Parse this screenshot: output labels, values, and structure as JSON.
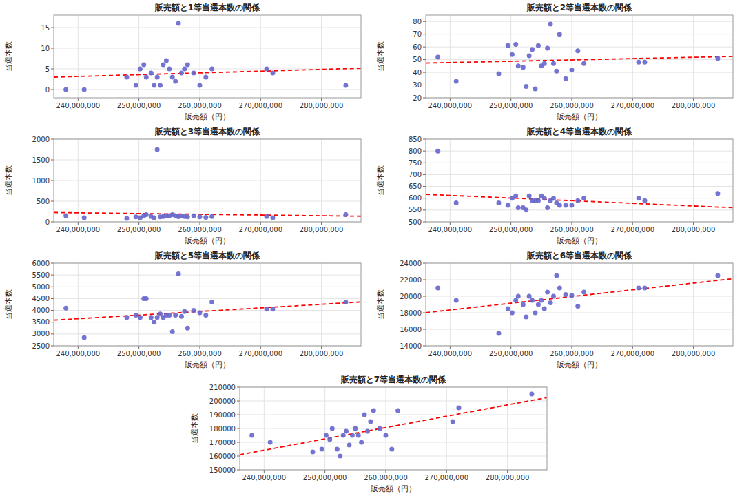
{
  "chart_data": [
    {
      "type": "scatter",
      "title": "販売額と1等当選本数の関係",
      "x_label": "販売額（円）",
      "y_label": "当選本数",
      "grid": true,
      "xlim": [
        236000000,
        286500000
      ],
      "xticks": [
        {
          "value": 240000000,
          "label": "240,000,000"
        },
        {
          "value": 250000000,
          "label": "250,000,000"
        },
        {
          "value": 260000000,
          "label": "260,000,000"
        },
        {
          "value": 270000000,
          "label": "270,000,000"
        },
        {
          "value": 280000000,
          "label": "280,000,000"
        }
      ],
      "ylim": [
        -2,
        18
      ],
      "yticks": [
        0,
        5,
        10,
        15
      ],
      "series": [
        {
          "type": "scatter",
          "color": "#6666cc",
          "x": [
            238000000,
            241000000,
            248000000,
            249500000,
            250200000,
            250800000,
            251200000,
            252000000,
            252500000,
            253000000,
            253500000,
            254000000,
            254500000,
            255000000,
            255500000,
            256000000,
            256500000,
            257000000,
            257500000,
            258000000,
            259000000,
            260000000,
            261000000,
            262000000,
            271000000,
            272000000,
            284000000
          ],
          "values": [
            0,
            0,
            3,
            1,
            5,
            6,
            3,
            4,
            1,
            3,
            1,
            6,
            7,
            5,
            3,
            2,
            16,
            4,
            5,
            6,
            4,
            1,
            3,
            5,
            5,
            4,
            1
          ]
        },
        {
          "type": "line",
          "color": "red",
          "line_style": "dashed",
          "x": [
            236000000,
            286500000
          ],
          "values": [
            2.997,
            5.153
          ]
        }
      ]
    },
    {
      "type": "scatter",
      "title": "販売額と2等当選本数の関係",
      "x_label": "販売額（円）",
      "y_label": "当選本数",
      "grid": true,
      "xlim": [
        236000000,
        286500000
      ],
      "xticks": [
        {
          "value": 240000000,
          "label": "240,000,000"
        },
        {
          "value": 250000000,
          "label": "250,000,000"
        },
        {
          "value": 260000000,
          "label": "260,000,000"
        },
        {
          "value": 270000000,
          "label": "270,000,000"
        },
        {
          "value": 280000000,
          "label": "280,000,000"
        }
      ],
      "ylim": [
        20,
        85
      ],
      "yticks": [
        20,
        30,
        40,
        50,
        60,
        70,
        80
      ],
      "series": [
        {
          "type": "scatter",
          "color": "#6666cc",
          "x": [
            238000000,
            241000000,
            248000000,
            249500000,
            250200000,
            250800000,
            251200000,
            252000000,
            252500000,
            253000000,
            253500000,
            254000000,
            254500000,
            255000000,
            255500000,
            256000000,
            256500000,
            257000000,
            257500000,
            258000000,
            259000000,
            260000000,
            261000000,
            262000000,
            271000000,
            272000000,
            284000000
          ],
          "values": [
            52,
            33,
            39,
            61,
            54,
            62,
            45,
            44,
            29,
            53,
            58,
            27,
            61,
            45,
            47,
            59,
            78,
            47,
            41,
            70,
            35,
            42,
            57,
            47,
            48,
            48,
            51
          ]
        },
        {
          "type": "line",
          "color": "red",
          "line_style": "dashed",
          "x": [
            236000000,
            286500000
          ],
          "values": [
            47.298,
            52.524
          ]
        }
      ]
    },
    {
      "type": "scatter",
      "title": "販売額と3等当選本数の関係",
      "x_label": "販売額（円）",
      "y_label": "当選本数",
      "grid": true,
      "xlim": [
        236000000,
        286500000
      ],
      "xticks": [
        {
          "value": 240000000,
          "label": "240,000,000"
        },
        {
          "value": 250000000,
          "label": "250,000,000"
        },
        {
          "value": 260000000,
          "label": "260,000,000"
        },
        {
          "value": 270000000,
          "label": "270,000,000"
        },
        {
          "value": 280000000,
          "label": "280,000,000"
        }
      ],
      "ylim": [
        0,
        2000
      ],
      "yticks": [
        0,
        500,
        1000,
        1500,
        2000
      ],
      "series": [
        {
          "type": "scatter",
          "color": "#6666cc",
          "x": [
            238000000,
            241000000,
            248000000,
            249500000,
            250200000,
            250800000,
            251200000,
            252000000,
            252500000,
            253000000,
            253500000,
            254000000,
            254500000,
            255000000,
            255500000,
            256000000,
            256500000,
            257000000,
            257500000,
            258000000,
            259000000,
            260000000,
            261000000,
            262000000,
            271000000,
            272000000,
            284000000
          ],
          "values": [
            150,
            100,
            85,
            120,
            100,
            150,
            175,
            130,
            100,
            1750,
            120,
            130,
            140,
            150,
            175,
            150,
            125,
            140,
            130,
            120,
            150,
            120,
            110,
            130,
            130,
            100,
            175
          ]
        },
        {
          "type": "line",
          "color": "red",
          "line_style": "dashed",
          "x": [
            236000000,
            286500000
          ],
          "values": [
            226.1,
            137.4
          ]
        }
      ]
    },
    {
      "type": "scatter",
      "title": "販売額と4等当選本数の関係",
      "x_label": "販売額（円）",
      "y_label": "当選本数",
      "grid": true,
      "xlim": [
        236000000,
        286500000
      ],
      "xticks": [
        {
          "value": 240000000,
          "label": "240,000,000"
        },
        {
          "value": 250000000,
          "label": "250,000,000"
        },
        {
          "value": 260000000,
          "label": "260,000,000"
        },
        {
          "value": 270000000,
          "label": "270,000,000"
        },
        {
          "value": 280000000,
          "label": "280,000,000"
        }
      ],
      "ylim": [
        500,
        850
      ],
      "yticks": [
        500,
        550,
        600,
        650,
        700,
        750,
        800,
        850
      ],
      "series": [
        {
          "type": "scatter",
          "color": "#6666cc",
          "x": [
            238000000,
            241000000,
            248000000,
            249500000,
            250200000,
            250800000,
            251200000,
            252000000,
            252500000,
            253000000,
            253500000,
            254000000,
            254500000,
            255000000,
            255500000,
            256000000,
            256500000,
            257000000,
            257500000,
            258000000,
            259000000,
            260000000,
            261000000,
            262000000,
            271000000,
            272000000,
            284000000
          ],
          "values": [
            800,
            580,
            580,
            570,
            600,
            610,
            560,
            560,
            550,
            610,
            590,
            590,
            590,
            610,
            600,
            560,
            590,
            600,
            580,
            570,
            570,
            570,
            590,
            600,
            600,
            590,
            620
          ]
        },
        {
          "type": "line",
          "color": "red",
          "line_style": "dashed",
          "x": [
            236000000,
            286500000
          ],
          "values": [
            616.453,
            560.02
          ]
        }
      ]
    },
    {
      "type": "scatter",
      "title": "販売額と5等当選本数の関係",
      "x_label": "販売額（円）",
      "y_label": "当選本数",
      "grid": true,
      "xlim": [
        236000000,
        286500000
      ],
      "xticks": [
        {
          "value": 240000000,
          "label": "240,000,000"
        },
        {
          "value": 250000000,
          "label": "250,000,000"
        },
        {
          "value": 260000000,
          "label": "260,000,000"
        },
        {
          "value": 270000000,
          "label": "270,000,000"
        },
        {
          "value": 280000000,
          "label": "280,000,000"
        }
      ],
      "ylim": [
        2500,
        6000
      ],
      "yticks": [
        2500,
        3000,
        3500,
        4000,
        4500,
        5000,
        5500,
        6000
      ],
      "series": [
        {
          "type": "scatter",
          "color": "#6666cc",
          "x": [
            238000000,
            241000000,
            248000000,
            249500000,
            250200000,
            250800000,
            251200000,
            252000000,
            252500000,
            253000000,
            253500000,
            254000000,
            254500000,
            255000000,
            255500000,
            256000000,
            256500000,
            257000000,
            257500000,
            258000000,
            259000000,
            260000000,
            261000000,
            262000000,
            271000000,
            272000000,
            284000000
          ],
          "values": [
            4100,
            2850,
            3700,
            3800,
            3700,
            4500,
            4500,
            3700,
            3500,
            3700,
            3850,
            3700,
            3800,
            3800,
            3100,
            3800,
            5550,
            3750,
            3950,
            3250,
            4000,
            3900,
            3800,
            4350,
            4050,
            4050,
            4350
          ]
        },
        {
          "type": "line",
          "color": "red",
          "line_style": "dashed",
          "x": [
            236000000,
            286500000
          ],
          "values": [
            3587.418,
            4356.986
          ]
        }
      ]
    },
    {
      "type": "scatter",
      "title": "販売額と6等当選本数の関係",
      "x_label": "販売額（円）",
      "y_label": "当選本数",
      "grid": true,
      "xlim": [
        236000000,
        286500000
      ],
      "xticks": [
        {
          "value": 240000000,
          "label": "240,000,000"
        },
        {
          "value": 250000000,
          "label": "250,000,000"
        },
        {
          "value": 260000000,
          "label": "260,000,000"
        },
        {
          "value": 270000000,
          "label": "270,000,000"
        },
        {
          "value": 280000000,
          "label": "280,000,000"
        }
      ],
      "ylim": [
        14000,
        24000
      ],
      "yticks": [
        14000,
        16000,
        18000,
        20000,
        22000,
        24000
      ],
      "series": [
        {
          "type": "scatter",
          "color": "#6666cc",
          "x": [
            238000000,
            241000000,
            248000000,
            249500000,
            250200000,
            250800000,
            251200000,
            252000000,
            252500000,
            253000000,
            253500000,
            254000000,
            254500000,
            255000000,
            255500000,
            256000000,
            256500000,
            257000000,
            257500000,
            258000000,
            259000000,
            260000000,
            261000000,
            262000000,
            271000000,
            272000000,
            284000000
          ],
          "values": [
            21000,
            19500,
            15500,
            18500,
            18000,
            19500,
            20000,
            19000,
            17500,
            20000,
            19500,
            18000,
            19000,
            19500,
            18500,
            20500,
            19200,
            20000,
            22500,
            21000,
            20200,
            20100,
            18800,
            20500,
            21000,
            21000,
            22500
          ]
        },
        {
          "type": "line",
          "color": "red",
          "line_style": "dashed",
          "x": [
            236000000,
            286500000
          ],
          "values": [
            18011.399,
            22120.16
          ]
        }
      ]
    },
    {
      "type": "scatter",
      "title": "販売額と7等当選本数の関係",
      "x_label": "販売額（円）",
      "y_label": "当選本数",
      "grid": true,
      "xlim": [
        236000000,
        286500000
      ],
      "xticks": [
        {
          "value": 240000000,
          "label": "240,000,000"
        },
        {
          "value": 250000000,
          "label": "250,000,000"
        },
        {
          "value": 260000000,
          "label": "260,000,000"
        },
        {
          "value": 270000000,
          "label": "270,000,000"
        },
        {
          "value": 280000000,
          "label": "280,000,000"
        }
      ],
      "ylim": [
        150000,
        210000
      ],
      "yticks": [
        150000,
        160000,
        170000,
        180000,
        190000,
        200000,
        210000
      ],
      "series": [
        {
          "type": "scatter",
          "color": "#6666cc",
          "x": [
            238000000,
            241000000,
            248000000,
            249500000,
            250200000,
            250800000,
            251200000,
            252000000,
            252500000,
            253000000,
            253500000,
            254000000,
            254500000,
            255000000,
            255500000,
            256000000,
            256500000,
            257000000,
            257500000,
            258000000,
            259000000,
            260000000,
            261000000,
            262000000,
            271000000,
            272000000,
            284000000
          ],
          "values": [
            175000,
            170000,
            163000,
            165000,
            175000,
            172000,
            180000,
            165000,
            160000,
            175000,
            178000,
            168000,
            175000,
            180000,
            175000,
            170000,
            190000,
            178000,
            185000,
            193000,
            180000,
            175000,
            165000,
            193000,
            185000,
            195000,
            205000
          ]
        },
        {
          "type": "line",
          "color": "red",
          "line_style": "dashed",
          "x": [
            236000000,
            286500000
          ],
          "values": [
            160961.128,
            202434.222
          ]
        }
      ]
    }
  ]
}
